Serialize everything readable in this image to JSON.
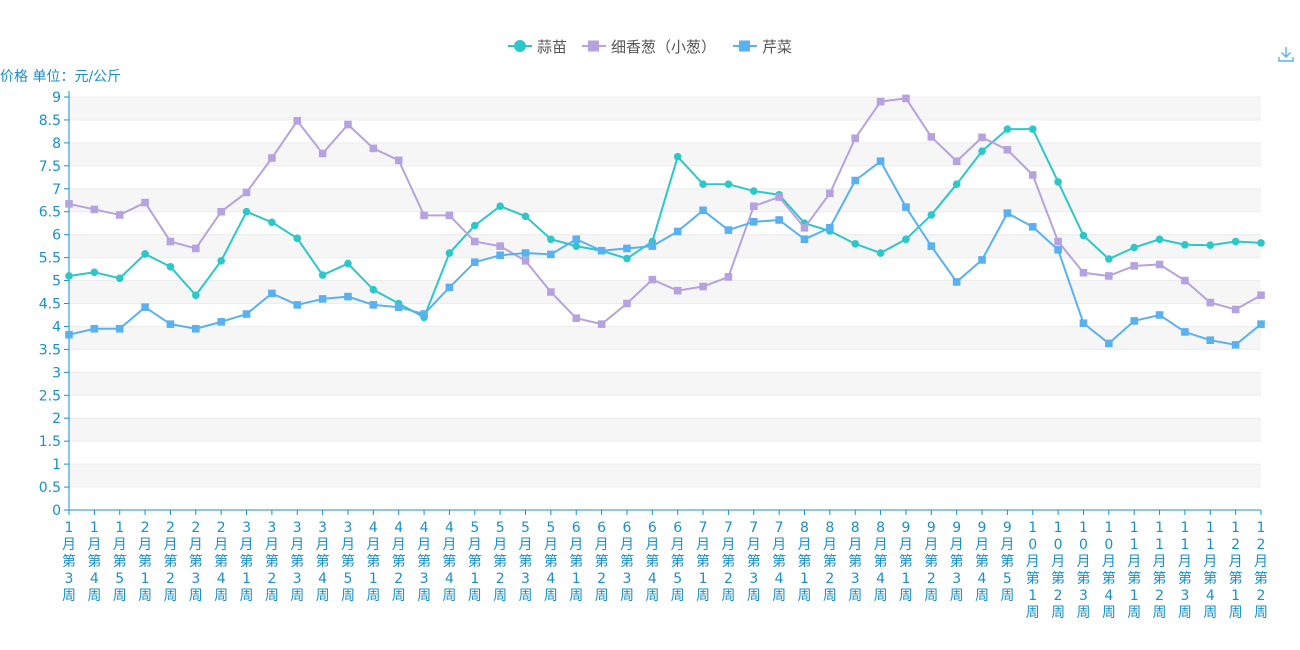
{
  "chart_data": {
    "type": "line",
    "ylabel": "价格 单位：元/公斤",
    "ylim": [
      0,
      9
    ],
    "y_ticks": [
      "0",
      "0.5",
      "1",
      "1.5",
      "2",
      "2.5",
      "3",
      "3.5",
      "4",
      "4.5",
      "5",
      "5.5",
      "6",
      "6.5",
      "7",
      "7.5",
      "8",
      "8.5",
      "9"
    ],
    "categories": [
      "1月第3周",
      "1月第4周",
      "1月第5周",
      "2月第1周",
      "2月第2周",
      "2月第3周",
      "2月第4周",
      "3月第1周",
      "3月第2周",
      "3月第3周",
      "3月第4周",
      "3月第5周",
      "4月第1周",
      "4月第2周",
      "4月第3周",
      "4月第4周",
      "5月第1周",
      "5月第2周",
      "5月第3周",
      "5月第4周",
      "6月第1周",
      "6月第2周",
      "6月第3周",
      "6月第4周",
      "6月第5周",
      "7月第1周",
      "7月第2周",
      "7月第3周",
      "7月第4周",
      "8月第1周",
      "8月第2周",
      "8月第3周",
      "8月第4周",
      "9月第1周",
      "9月第2周",
      "9月第3周",
      "9月第4周",
      "9月第5周",
      "10月第1周",
      "10月第2周",
      "10月第3周",
      "10月第4周",
      "11月第1周",
      "11月第2周",
      "11月第3周",
      "11月第4周",
      "12月第1周",
      "12月第2周"
    ],
    "series": [
      {
        "name": "蒜苗",
        "color": "#2ec7c9",
        "marker": "circle",
        "values": [
          5.1,
          5.18,
          5.05,
          5.58,
          5.3,
          4.68,
          5.43,
          6.5,
          6.27,
          5.92,
          5.12,
          5.37,
          4.8,
          4.5,
          4.2,
          5.6,
          6.2,
          6.62,
          6.4,
          5.9,
          5.75,
          5.65,
          5.48,
          5.85,
          7.7,
          7.1,
          7.1,
          6.95,
          6.87,
          6.25,
          6.08,
          5.8,
          5.6,
          5.9,
          6.43,
          7.1,
          7.82,
          8.3,
          8.3,
          7.15,
          5.98,
          5.47,
          5.72,
          5.9,
          5.78,
          5.77,
          5.85,
          5.82
        ]
      },
      {
        "name": "细香葱（小葱）",
        "color": "#b6a2de",
        "marker": "square",
        "values": [
          6.67,
          6.55,
          6.43,
          6.7,
          5.85,
          5.7,
          6.5,
          6.92,
          7.67,
          8.48,
          7.77,
          8.4,
          7.88,
          7.62,
          6.42,
          6.42,
          5.85,
          5.75,
          5.43,
          4.75,
          4.18,
          4.05,
          4.5,
          5.02,
          4.78,
          4.87,
          5.08,
          6.62,
          6.82,
          6.15,
          6.9,
          8.1,
          8.9,
          8.97,
          8.13,
          7.6,
          8.12,
          7.85,
          7.3,
          5.85,
          5.17,
          5.1,
          5.32,
          5.35,
          5.0,
          4.52,
          4.37,
          4.68
        ]
      },
      {
        "name": "芹菜",
        "color": "#5ab1ef",
        "marker": "square",
        "values": [
          3.82,
          3.95,
          3.95,
          4.42,
          4.05,
          3.95,
          4.1,
          4.27,
          4.72,
          4.47,
          4.6,
          4.65,
          4.47,
          4.42,
          4.27,
          4.85,
          5.4,
          5.55,
          5.6,
          5.57,
          5.9,
          5.65,
          5.7,
          5.75,
          6.07,
          6.53,
          6.1,
          6.28,
          6.32,
          5.9,
          6.15,
          7.18,
          7.6,
          6.6,
          5.75,
          4.97,
          5.45,
          6.47,
          6.17,
          5.67,
          4.07,
          3.63,
          4.12,
          4.25,
          3.88,
          3.7,
          3.6,
          4.05
        ]
      }
    ],
    "legend": "top-center",
    "grid": true
  },
  "toolbox": {
    "download_icon": "download-icon"
  }
}
